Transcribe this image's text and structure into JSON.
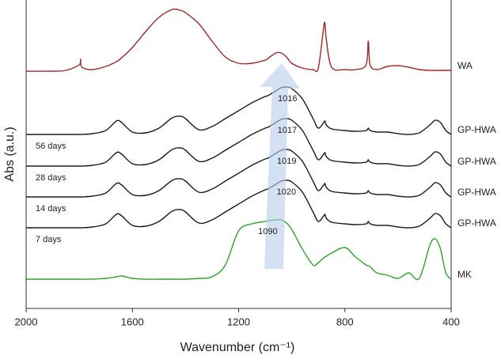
{
  "chart_data": {
    "type": "line",
    "x_label": "Wavenumber (cm⁻¹)",
    "y_label": "Abs (a.u.)",
    "xlim": [
      2000,
      400
    ],
    "xticks": [
      2000,
      1600,
      1200,
      800,
      400
    ],
    "ylim": [
      0,
      390
    ],
    "x": [
      2000,
      1900,
      1850,
      1800,
      1795,
      1790,
      1750,
      1700,
      1660,
      1640,
      1600,
      1550,
      1500,
      1450,
      1420,
      1400,
      1350,
      1300,
      1250,
      1200,
      1150,
      1100,
      1090,
      1060,
      1040,
      1020,
      1000,
      960,
      920,
      900,
      880,
      875,
      870,
      850,
      800,
      760,
      720,
      712,
      705,
      680,
      640,
      600,
      560,
      520,
      480,
      460,
      440,
      420,
      400
    ],
    "series": [
      {
        "name": "WA",
        "color": "#a3262b",
        "values": [
          300,
          300,
          301,
          308,
          315,
          305,
          302,
          306,
          312,
          317,
          330,
          350,
          368,
          378,
          377,
          374,
          360,
          338,
          318,
          310,
          310,
          314,
          316,
          323,
          323,
          318,
          310,
          304,
          302,
          304,
          355,
          360,
          340,
          305,
          302,
          302,
          308,
          338,
          308,
          302,
          306,
          307,
          305,
          302,
          301,
          301,
          301,
          301,
          301
        ]
      },
      {
        "name": "GP-HWA",
        "color": "#1a1a1a",
        "annotation": "56 days",
        "peak": 1016,
        "values": [
          220,
          220,
          220,
          220,
          220,
          220,
          221,
          225,
          237,
          235,
          223,
          222,
          228,
          241,
          243,
          240,
          226,
          230,
          240,
          250,
          260,
          268,
          269,
          275,
          279,
          280,
          278,
          265,
          240,
          228,
          235,
          237,
          232,
          227,
          225,
          224,
          225,
          228,
          225,
          223,
          223,
          221,
          220,
          222,
          232,
          238,
          235,
          225,
          220
        ]
      },
      {
        "name": "GP-HWA",
        "color": "#1a1a1a",
        "annotation": "28 days",
        "peak": 1017,
        "values": [
          180,
          180,
          180,
          180,
          180,
          180,
          181,
          185,
          197,
          195,
          183,
          182,
          188,
          201,
          203,
          200,
          186,
          190,
          200,
          210,
          220,
          228,
          229,
          235,
          239,
          240,
          238,
          225,
          200,
          188,
          195,
          197,
          192,
          187,
          185,
          184,
          185,
          188,
          185,
          183,
          183,
          181,
          180,
          182,
          192,
          198,
          195,
          185,
          180
        ]
      },
      {
        "name": "GP-HWA",
        "color": "#1a1a1a",
        "annotation": "14 days",
        "peak": 1019,
        "values": [
          141,
          141,
          141,
          141,
          141,
          141,
          142,
          146,
          158,
          156,
          144,
          143,
          149,
          162,
          164,
          161,
          147,
          151,
          161,
          171,
          181,
          189,
          190,
          196,
          200,
          201,
          199,
          186,
          161,
          149,
          156,
          158,
          153,
          148,
          146,
          145,
          146,
          149,
          146,
          144,
          144,
          142,
          141,
          143,
          153,
          159,
          156,
          146,
          141
        ]
      },
      {
        "name": "GP-HWA",
        "color": "#1a1a1a",
        "annotation": "7 days",
        "peak": 1020,
        "values": [
          102,
          102,
          102,
          102,
          102,
          102,
          103,
          107,
          119,
          117,
          105,
          104,
          110,
          123,
          125,
          122,
          108,
          112,
          122,
          132,
          142,
          150,
          151,
          157,
          161,
          162,
          160,
          147,
          122,
          110,
          117,
          119,
          114,
          109,
          107,
          106,
          107,
          110,
          107,
          105,
          105,
          103,
          102,
          104,
          114,
          120,
          117,
          107,
          102
        ]
      },
      {
        "name": "MK",
        "color": "#2ea52a",
        "peak": 1090,
        "values": [
          37,
          37,
          37,
          37,
          37,
          37,
          37,
          38,
          40,
          41,
          38,
          37,
          37,
          37,
          37,
          37,
          38,
          40,
          55,
          98,
          107,
          110,
          111,
          112,
          112,
          108,
          100,
          75,
          55,
          58,
          64,
          65,
          66,
          70,
          77,
          65,
          55,
          54,
          53,
          45,
          42,
          38,
          45,
          38,
          80,
          88,
          75,
          45,
          37
        ]
      }
    ]
  }
}
